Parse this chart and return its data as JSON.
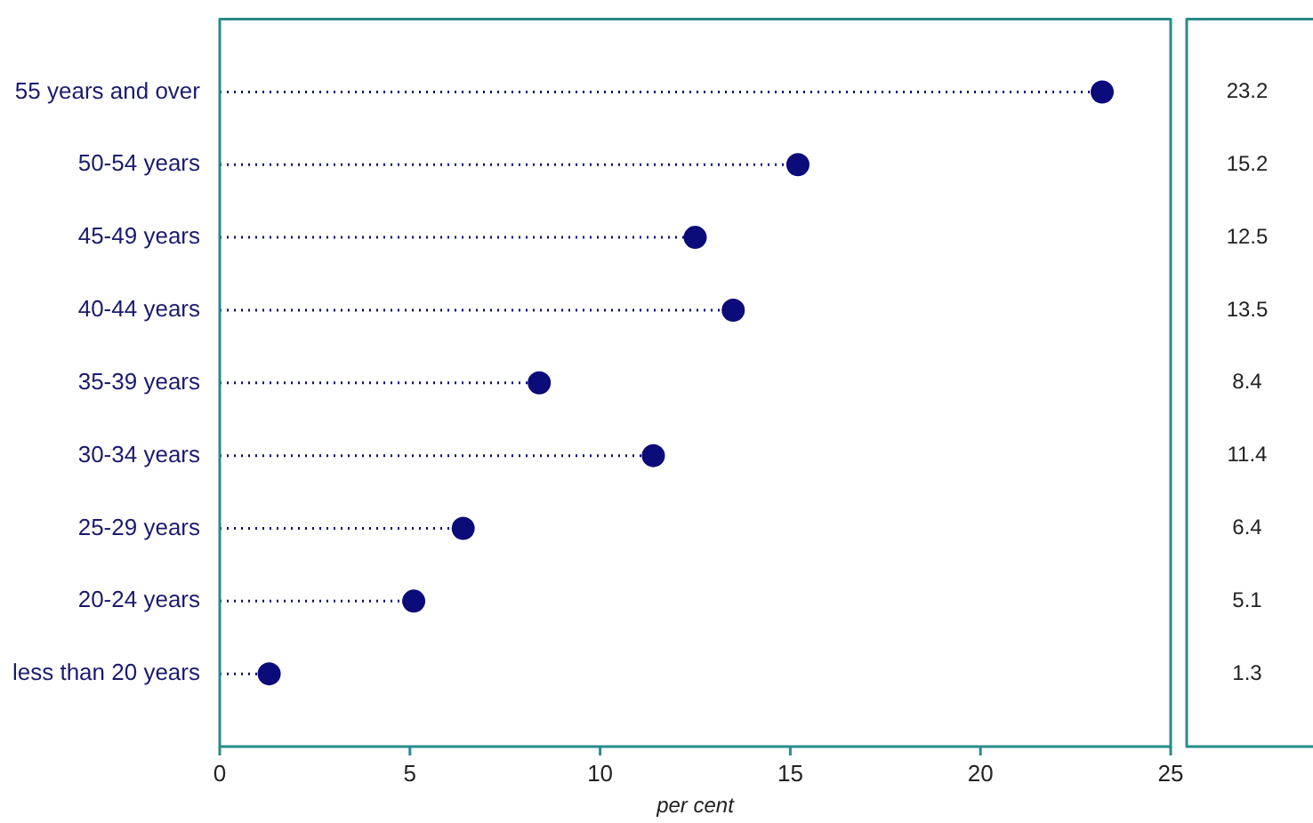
{
  "chart_data": {
    "type": "lollipop",
    "orientation": "horizontal",
    "xlabel": "per cent",
    "categories": [
      "55 years and over",
      "50-54 years",
      "45-49 years",
      "40-44 years",
      "35-39 years",
      "30-34 years",
      "25-29 years",
      "20-24 years",
      "less than 20 years"
    ],
    "values": [
      23.2,
      15.2,
      12.5,
      13.5,
      8.4,
      11.4,
      6.4,
      5.1,
      1.3
    ],
    "color": "#0b0b7a",
    "xlim": [
      0,
      25
    ],
    "xticks": [
      0,
      5,
      10,
      15,
      20,
      25
    ],
    "data_labels": true,
    "marker": "circle",
    "line_style": "dotted"
  }
}
